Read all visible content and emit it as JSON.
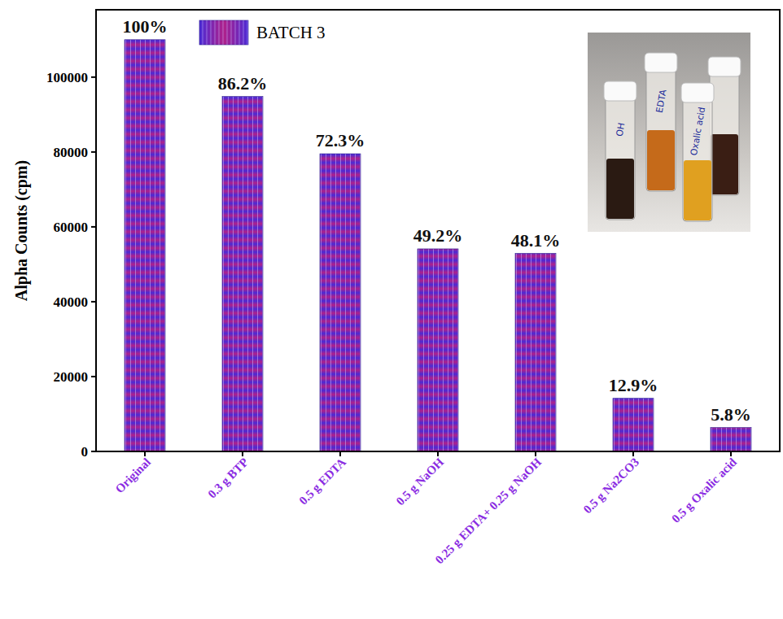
{
  "chart_data": {
    "type": "bar",
    "y_label": "Alpha Counts (cpm)",
    "categories": [
      "Original",
      "0.3 g BTP",
      "0.5 g EDTA",
      "0.5 g NaOH",
      "0.25 g EDTA+ 0.25 g NaOH",
      "0.5 g Na2CO3",
      "0.5 g Oxalic acid"
    ],
    "series": [
      {
        "name": "BATCH 3",
        "color": "#4a2bd6",
        "values": [
          110000,
          94820,
          79530,
          54120,
          52910,
          14190,
          6380
        ],
        "percent_labels": [
          "100%",
          "86.2%",
          "72.3%",
          "49.2%",
          "48.1%",
          "12.9%",
          "5.8%"
        ]
      }
    ],
    "ylim": [
      0,
      118000
    ],
    "yticks": [
      0,
      20000,
      40000,
      60000,
      80000,
      100000
    ],
    "grid": false,
    "legend": "top-left",
    "inset_labels": [
      "OH",
      "EDTA",
      "Oxalic acid"
    ]
  }
}
